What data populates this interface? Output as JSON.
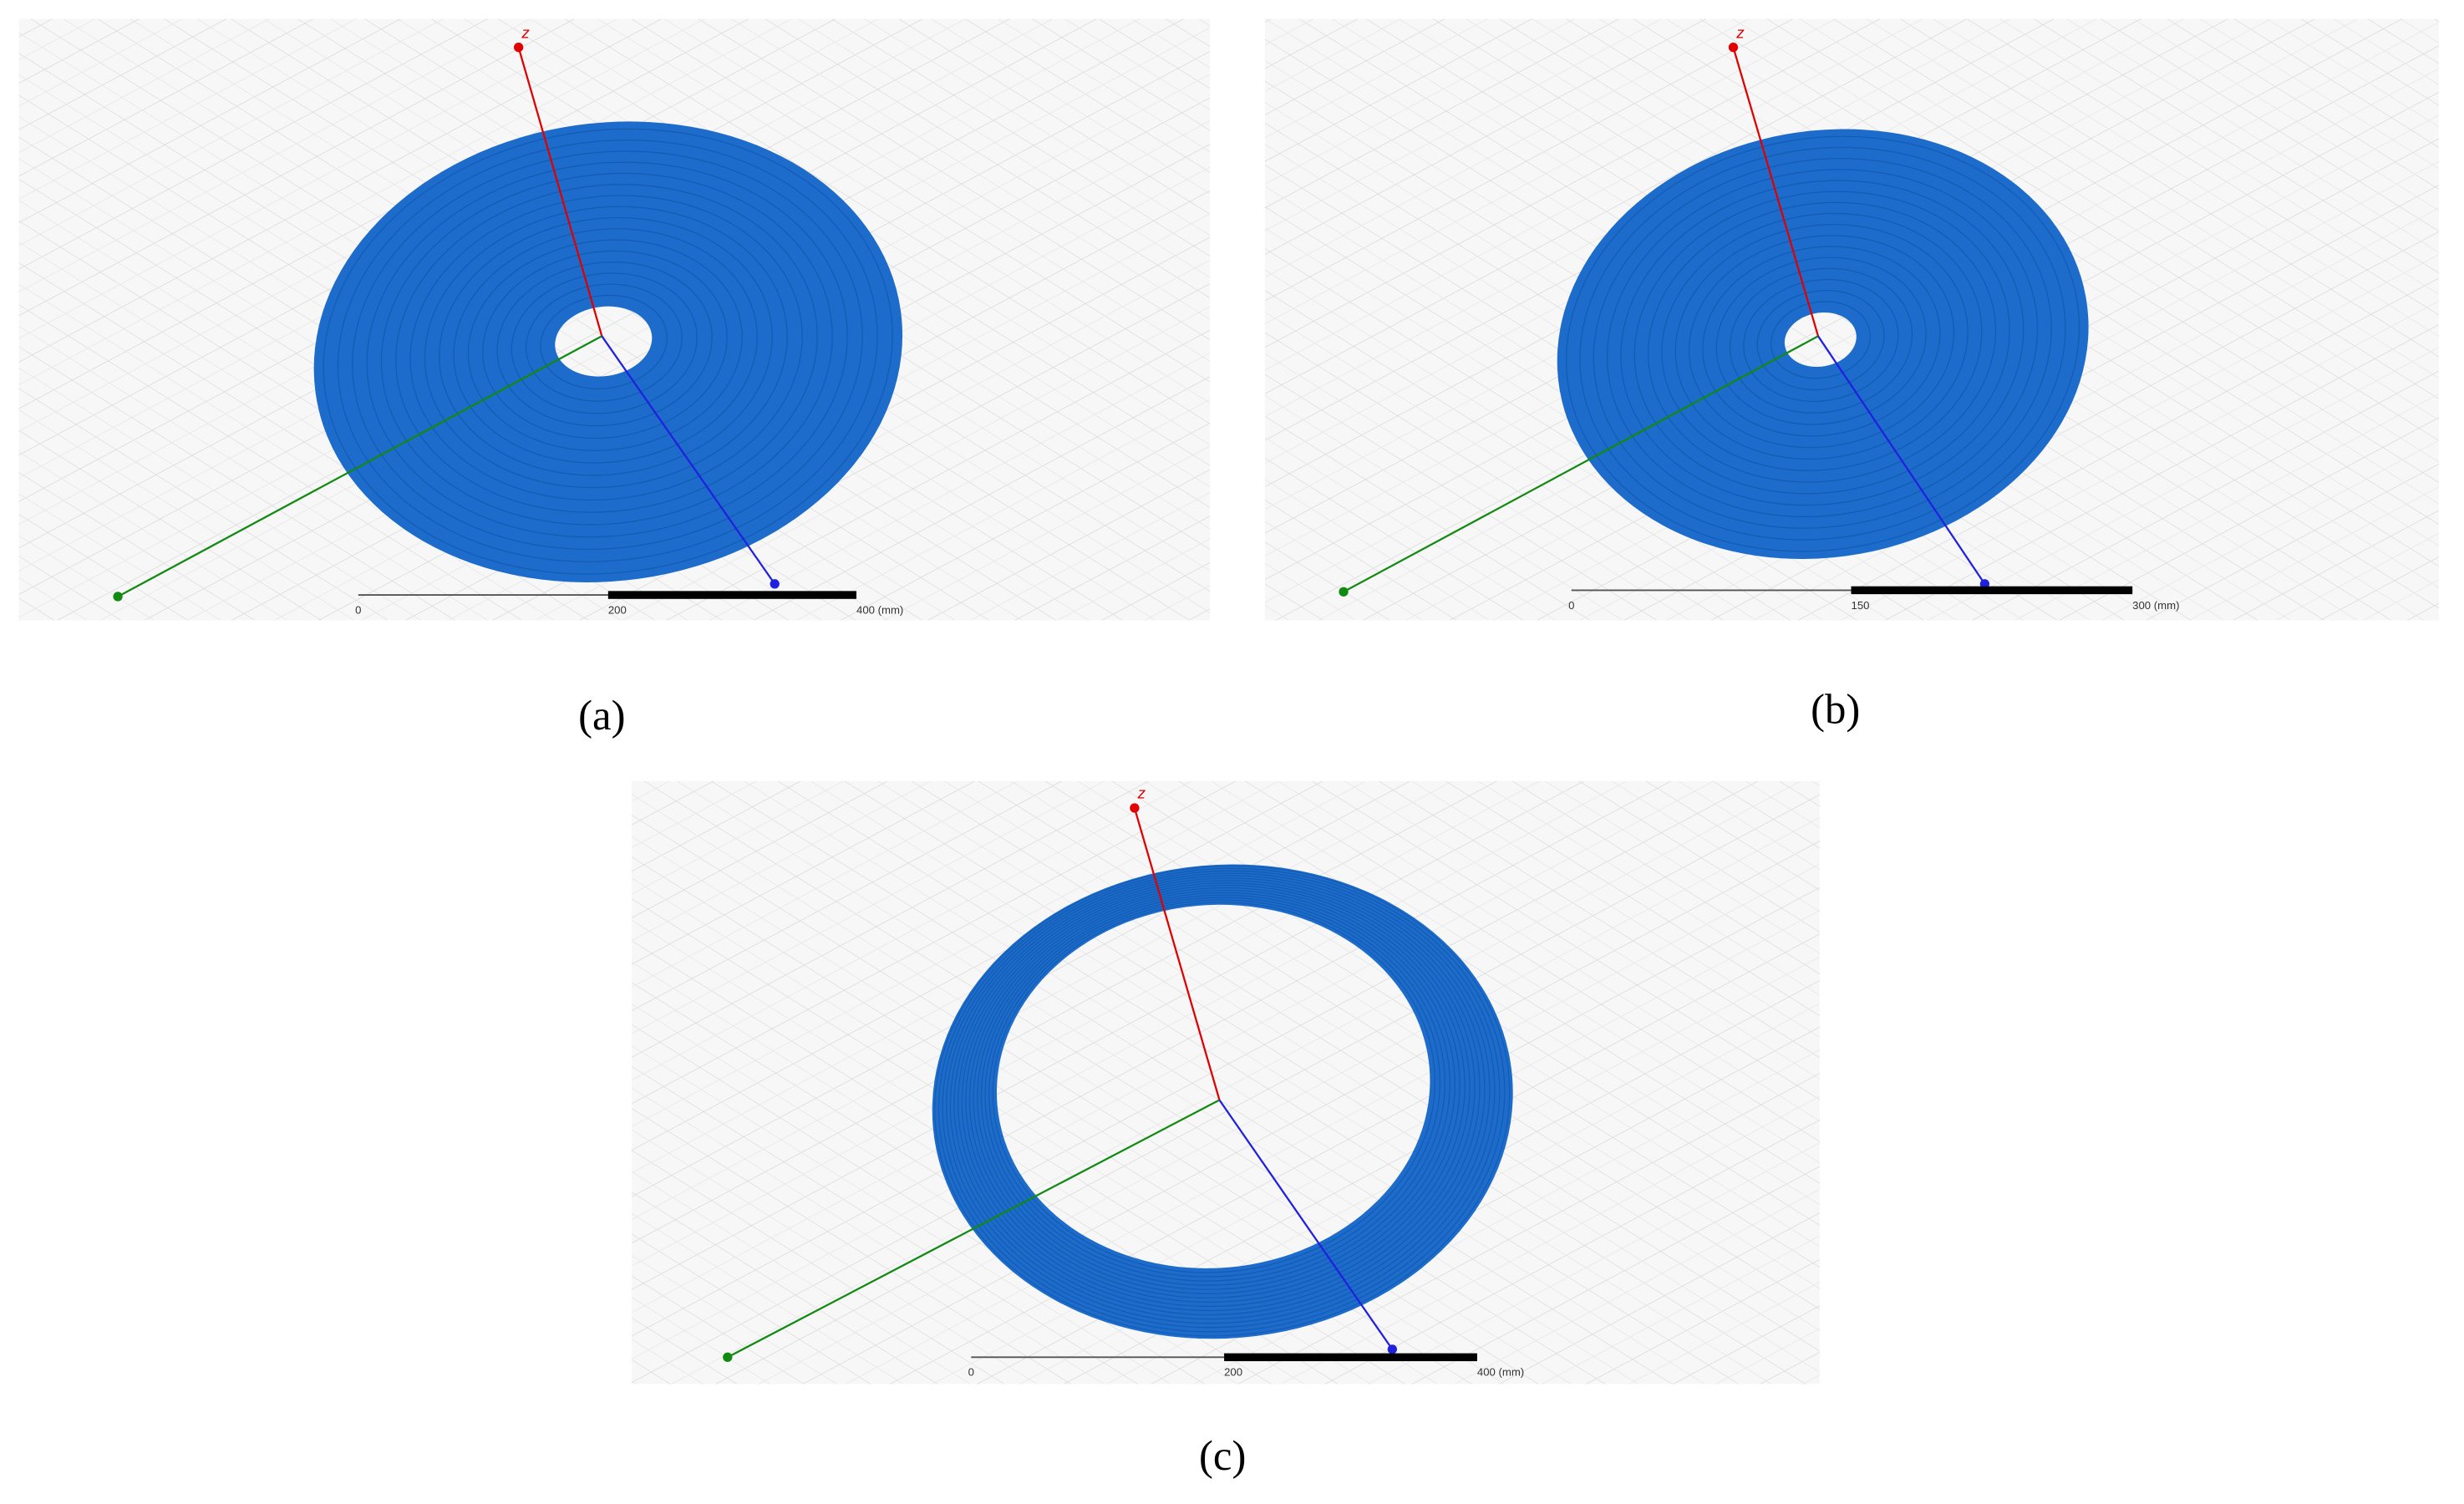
{
  "panels": [
    {
      "label": "(a)",
      "axis_label": "z",
      "scale_labels": [
        "0",
        "200",
        "400 (mm)"
      ]
    },
    {
      "label": "(b)",
      "axis_label": "z",
      "scale_labels": [
        "0",
        "150",
        "300 (mm)"
      ]
    },
    {
      "label": "(c)",
      "axis_label": "z",
      "scale_labels": [
        "0",
        "200",
        "400 (mm)"
      ]
    }
  ]
}
